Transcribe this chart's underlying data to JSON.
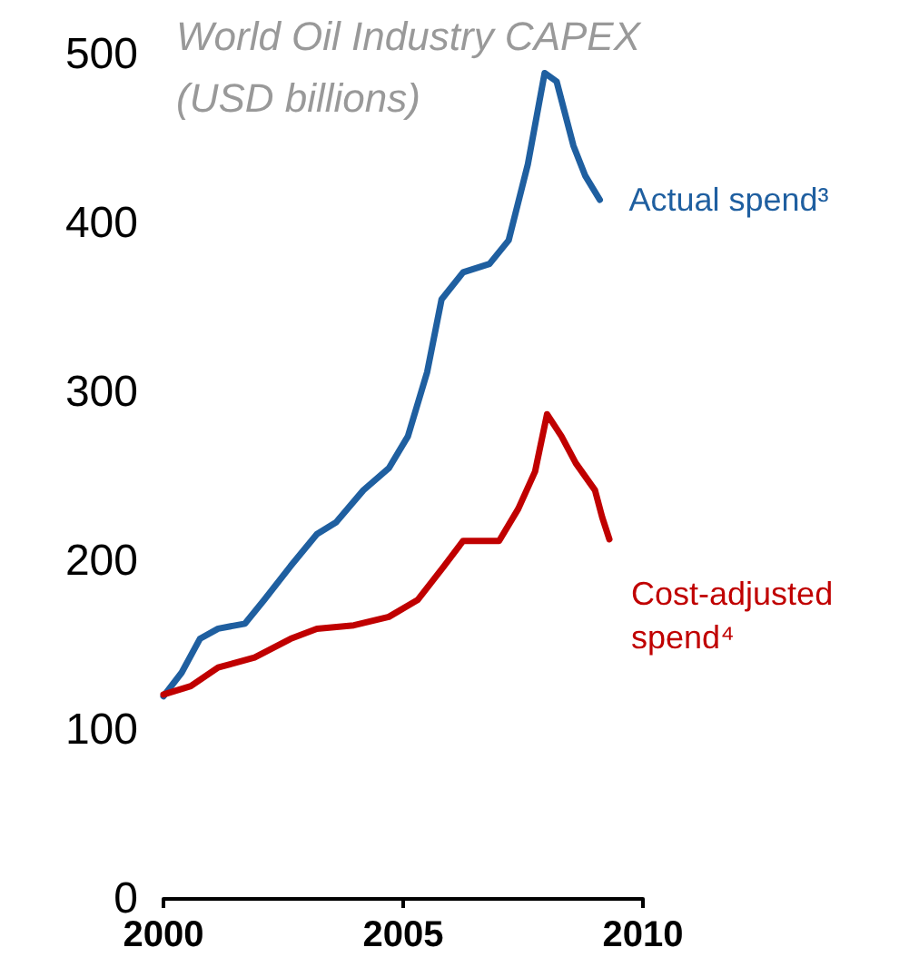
{
  "chart_data": {
    "type": "line",
    "title": "World Oil Industry CAPEX",
    "subtitle": "(USD billions)",
    "xlim": [
      2000,
      2010
    ],
    "xticks": [
      2000,
      2005,
      2010
    ],
    "ylim": [
      0,
      500
    ],
    "yticks": [
      0,
      100,
      200,
      300,
      400,
      500
    ],
    "grid": false,
    "legend": false,
    "marker": "none",
    "line_style": "solid",
    "series": [
      {
        "name": "Actual spend³",
        "color": "#1f5fa0",
        "x": [
          2000,
          2000.38,
          2000.76,
          2001.14,
          2001.7,
          2002.1,
          2002.65,
          2003.2,
          2003.6,
          2004.17,
          2004.7,
          2005.1,
          2005.5,
          2005.8,
          2006.25,
          2006.8,
          2007.2,
          2007.6,
          2007.95,
          2008.2,
          2008.55,
          2008.8,
          2009.1
        ],
        "values": [
          120,
          134,
          154,
          160,
          163,
          177,
          197,
          216,
          223,
          242,
          255,
          274,
          312,
          355,
          371,
          376,
          390,
          435,
          489,
          484,
          446,
          428,
          414
        ]
      },
      {
        "name": "Cost-adjusted spend⁴",
        "color": "#c00000",
        "x": [
          2000,
          2000.57,
          2001.14,
          2001.9,
          2002.65,
          2003.2,
          2003.97,
          2004.7,
          2005.3,
          2005.85,
          2006.25,
          2007,
          2007.4,
          2007.75,
          2008.0,
          2008.3,
          2008.6,
          2009.0,
          2009.15,
          2009.3
        ],
        "values": [
          121,
          126,
          137,
          143,
          154,
          160,
          162,
          167,
          177,
          197,
          212,
          212,
          231,
          253,
          287,
          274,
          258,
          242,
          226,
          213
        ]
      }
    ]
  }
}
